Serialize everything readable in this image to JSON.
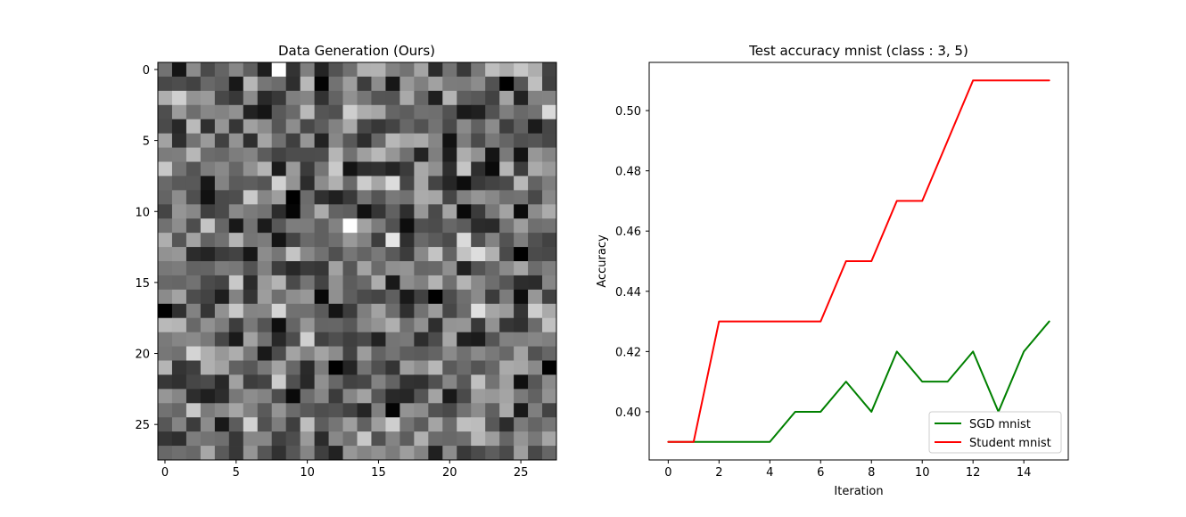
{
  "chart_data": [
    {
      "type": "heatmap",
      "title": "Data Generation (Ours)",
      "xticks": [
        "0",
        "5",
        "10",
        "15",
        "20",
        "25"
      ],
      "yticks": [
        "0",
        "5",
        "10",
        "15",
        "20",
        "25"
      ],
      "xlim": [
        -0.5,
        27.5
      ],
      "ylim": [
        27.5,
        -0.5
      ],
      "rows": 28,
      "cols": 28,
      "colormap": "gray",
      "grid": false,
      "seed": 1337,
      "bright_pixels": [
        {
          "row": 0,
          "col": 8,
          "value": 1.0
        },
        {
          "row": 11,
          "col": 13,
          "value": 1.0
        },
        {
          "row": 12,
          "col": 16,
          "value": 0.9
        },
        {
          "row": 17,
          "col": 22,
          "value": 0.88
        },
        {
          "row": 22,
          "col": 8,
          "value": 0.8
        },
        {
          "row": 3,
          "col": 27,
          "value": 0.85
        },
        {
          "row": 8,
          "col": 14,
          "value": 0.8
        }
      ],
      "dark_pixels": [
        {
          "row": 9,
          "col": 9,
          "value": 0.0
        },
        {
          "row": 10,
          "col": 9,
          "value": 0.02
        },
        {
          "row": 13,
          "col": 25,
          "value": 0.0
        },
        {
          "row": 16,
          "col": 25,
          "value": 0.05
        },
        {
          "row": 12,
          "col": 8,
          "value": 0.08
        },
        {
          "row": 8,
          "col": 21,
          "value": 0.05
        },
        {
          "row": 0,
          "col": 1,
          "value": 0.08
        },
        {
          "row": 19,
          "col": 5,
          "value": 0.1
        },
        {
          "row": 3,
          "col": 21,
          "value": 0.1
        }
      ]
    },
    {
      "type": "line",
      "title": "Test accuracy mnist (class : 3, 5)",
      "xlabel": "Iteration",
      "ylabel": "Accuracy",
      "x": [
        0,
        1,
        2,
        3,
        4,
        5,
        6,
        7,
        8,
        9,
        10,
        11,
        12,
        13,
        14,
        15
      ],
      "xlim": [
        -0.75,
        15.75
      ],
      "ylim": [
        0.384,
        0.516
      ],
      "xticks": [
        0,
        2,
        4,
        6,
        8,
        10,
        12,
        14
      ],
      "yticks": [
        0.4,
        0.42,
        0.44,
        0.46,
        0.48,
        0.5
      ],
      "ytick_labels": [
        "0.40",
        "0.42",
        "0.44",
        "0.46",
        "0.48",
        "0.50"
      ],
      "legend_position": "lower-right",
      "grid": false,
      "series": [
        {
          "name": "SGD mnist",
          "color": "#008000",
          "values": [
            0.39,
            0.39,
            0.39,
            0.39,
            0.39,
            0.4,
            0.4,
            0.41,
            0.4,
            0.42,
            0.41,
            0.41,
            0.42,
            0.4,
            0.42,
            0.43
          ]
        },
        {
          "name": "Student mnist",
          "color": "#ff0000",
          "values": [
            0.39,
            0.39,
            0.43,
            0.43,
            0.43,
            0.43,
            0.43,
            0.45,
            0.45,
            0.47,
            0.47,
            0.49,
            0.51,
            0.51,
            0.51,
            0.51
          ]
        }
      ]
    }
  ]
}
